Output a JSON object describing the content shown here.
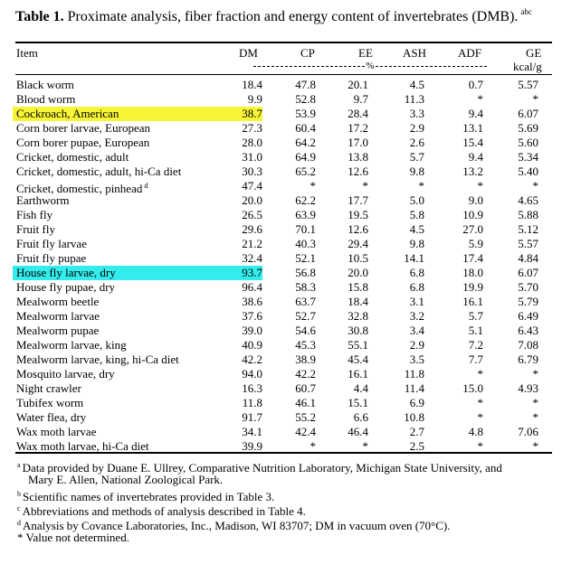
{
  "title": {
    "label": "Table 1",
    "text": "Proximate analysis, fiber fraction and energy content of invertebrates (DMB).",
    "sup": "abc"
  },
  "headers": {
    "item": "Item",
    "dm": "DM",
    "cp": "CP",
    "ee": "EE",
    "ash": "ASH",
    "adf": "ADF",
    "ge": "GE",
    "percent": "%",
    "ge_unit": "kcal/g"
  },
  "colors": {
    "highlight_yellow": "#f6f536",
    "highlight_cyan": "#33ecec"
  },
  "rows": [
    {
      "item": "Black worm",
      "dm": "18.4",
      "cp": "47.8",
      "ee": "20.1",
      "ash": "4.5",
      "adf": "0.7",
      "ge": "5.57"
    },
    {
      "item": "Blood worm",
      "dm": "9.9",
      "cp": "52.8",
      "ee": "9.7",
      "ash": "11.3",
      "adf": "*",
      "ge": "*"
    },
    {
      "item": "Cockroach, American",
      "dm": "38.7",
      "cp": "53.9",
      "ee": "28.4",
      "ash": "3.3",
      "adf": "9.4",
      "ge": "6.07",
      "highlight": "yellow"
    },
    {
      "item": "Corn borer larvae, European",
      "dm": "27.3",
      "cp": "60.4",
      "ee": "17.2",
      "ash": "2.9",
      "adf": "13.1",
      "ge": "5.69"
    },
    {
      "item": "Corn borer pupae, European",
      "dm": "28.0",
      "cp": "64.2",
      "ee": "17.0",
      "ash": "2.6",
      "adf": "15.4",
      "ge": "5.60"
    },
    {
      "item": "Cricket, domestic, adult",
      "dm": "31.0",
      "cp": "64.9",
      "ee": "13.8",
      "ash": "5.7",
      "adf": "9.4",
      "ge": "5.34"
    },
    {
      "item": "Cricket, domestic, adult, hi-Ca diet",
      "dm": "30.3",
      "cp": "65.2",
      "ee": "12.6",
      "ash": "9.8",
      "adf": "13.2",
      "ge": "5.40"
    },
    {
      "item": "Cricket, domestic, pinhead",
      "item_sup": "d",
      "dm": "47.4",
      "cp": "*",
      "ee": "*",
      "ash": "*",
      "adf": "*",
      "ge": "*"
    },
    {
      "item": "Earthworm",
      "dm": "20.0",
      "cp": "62.2",
      "ee": "17.7",
      "ash": "5.0",
      "adf": "9.0",
      "ge": "4.65"
    },
    {
      "item": "Fish fly",
      "dm": "26.5",
      "cp": "63.9",
      "ee": "19.5",
      "ash": "5.8",
      "adf": "10.9",
      "ge": "5.88"
    },
    {
      "item": "Fruit fly",
      "dm": "29.6",
      "cp": "70.1",
      "ee": "12.6",
      "ash": "4.5",
      "adf": "27.0",
      "ge": "5.12"
    },
    {
      "item": "Fruit fly larvae",
      "dm": "21.2",
      "cp": "40.3",
      "ee": "29.4",
      "ash": "9.8",
      "adf": "5.9",
      "ge": "5.57"
    },
    {
      "item": "Fruit fly pupae",
      "dm": "32.4",
      "cp": "52.1",
      "ee": "10.5",
      "ash": "14.1",
      "adf": "17.4",
      "ge": "4.84"
    },
    {
      "item": "House fly larvae, dry",
      "dm": "93.7",
      "cp": "56.8",
      "ee": "20.0",
      "ash": "6.8",
      "adf": "18.0",
      "ge": "6.07",
      "highlight": "cyan"
    },
    {
      "item": "House fly pupae, dry",
      "dm": "96.4",
      "cp": "58.3",
      "ee": "15.8",
      "ash": "6.8",
      "adf": "19.9",
      "ge": "5.70"
    },
    {
      "item": "Mealworm beetle",
      "dm": "38.6",
      "cp": "63.7",
      "ee": "18.4",
      "ash": "3.1",
      "adf": "16.1",
      "ge": "5.79"
    },
    {
      "item": "Mealworm larvae",
      "dm": "37.6",
      "cp": "52.7",
      "ee": "32.8",
      "ash": "3.2",
      "adf": "5.7",
      "ge": "6.49"
    },
    {
      "item": "Mealworm pupae",
      "dm": "39.0",
      "cp": "54.6",
      "ee": "30.8",
      "ash": "3.4",
      "adf": "5.1",
      "ge": "6.43"
    },
    {
      "item": "Mealworm larvae, king",
      "dm": "40.9",
      "cp": "45.3",
      "ee": "55.1",
      "ash": "2.9",
      "adf": "7.2",
      "ge": "7.08"
    },
    {
      "item": "Mealworm larvae, king, hi-Ca diet",
      "dm": "42.2",
      "cp": "38.9",
      "ee": "45.4",
      "ash": "3.5",
      "adf": "7.7",
      "ge": "6.79"
    },
    {
      "item": "Mosquito larvae, dry",
      "dm": "94.0",
      "cp": "42.2",
      "ee": "16.1",
      "ash": "11.8",
      "adf": "*",
      "ge": "*"
    },
    {
      "item": "Night crawler",
      "dm": "16.3",
      "cp": "60.7",
      "ee": "4.4",
      "ash": "11.4",
      "adf": "15.0",
      "ge": "4.93"
    },
    {
      "item": "Tubifex worm",
      "dm": "11.8",
      "cp": "46.1",
      "ee": "15.1",
      "ash": "6.9",
      "adf": "*",
      "ge": "*"
    },
    {
      "item": "Water flea, dry",
      "dm": "91.7",
      "cp": "55.2",
      "ee": "6.6",
      "ash": "10.8",
      "adf": "*",
      "ge": "*"
    },
    {
      "item": "Wax moth larvae",
      "dm": "34.1",
      "cp": "42.4",
      "ee": "46.4",
      "ash": "2.7",
      "adf": "4.8",
      "ge": "7.06"
    },
    {
      "item": "Wax moth larvae, hi-Ca diet",
      "dm": "39.9",
      "cp": "*",
      "ee": "*",
      "ash": "2.5",
      "adf": "*",
      "ge": "*"
    }
  ],
  "footnotes": [
    {
      "mark": "a",
      "lines": [
        "Data provided by Duane E. Ullrey, Comparative Nutrition Laboratory, Michigan State University, and",
        "Mary E. Allen, National Zoological Park."
      ]
    },
    {
      "mark": "b",
      "lines": [
        "Scientific names of invertebrates provided in Table 3."
      ]
    },
    {
      "mark": "c",
      "lines": [
        "Abbreviations and methods of analysis described in Table 4."
      ]
    },
    {
      "mark": "d",
      "lines": [
        "Analysis by Covance Laboratories, Inc., Madison, WI 83707; DM in vacuum oven (70°C)."
      ]
    },
    {
      "mark": "",
      "lines": [
        "* Value not determined."
      ]
    }
  ]
}
